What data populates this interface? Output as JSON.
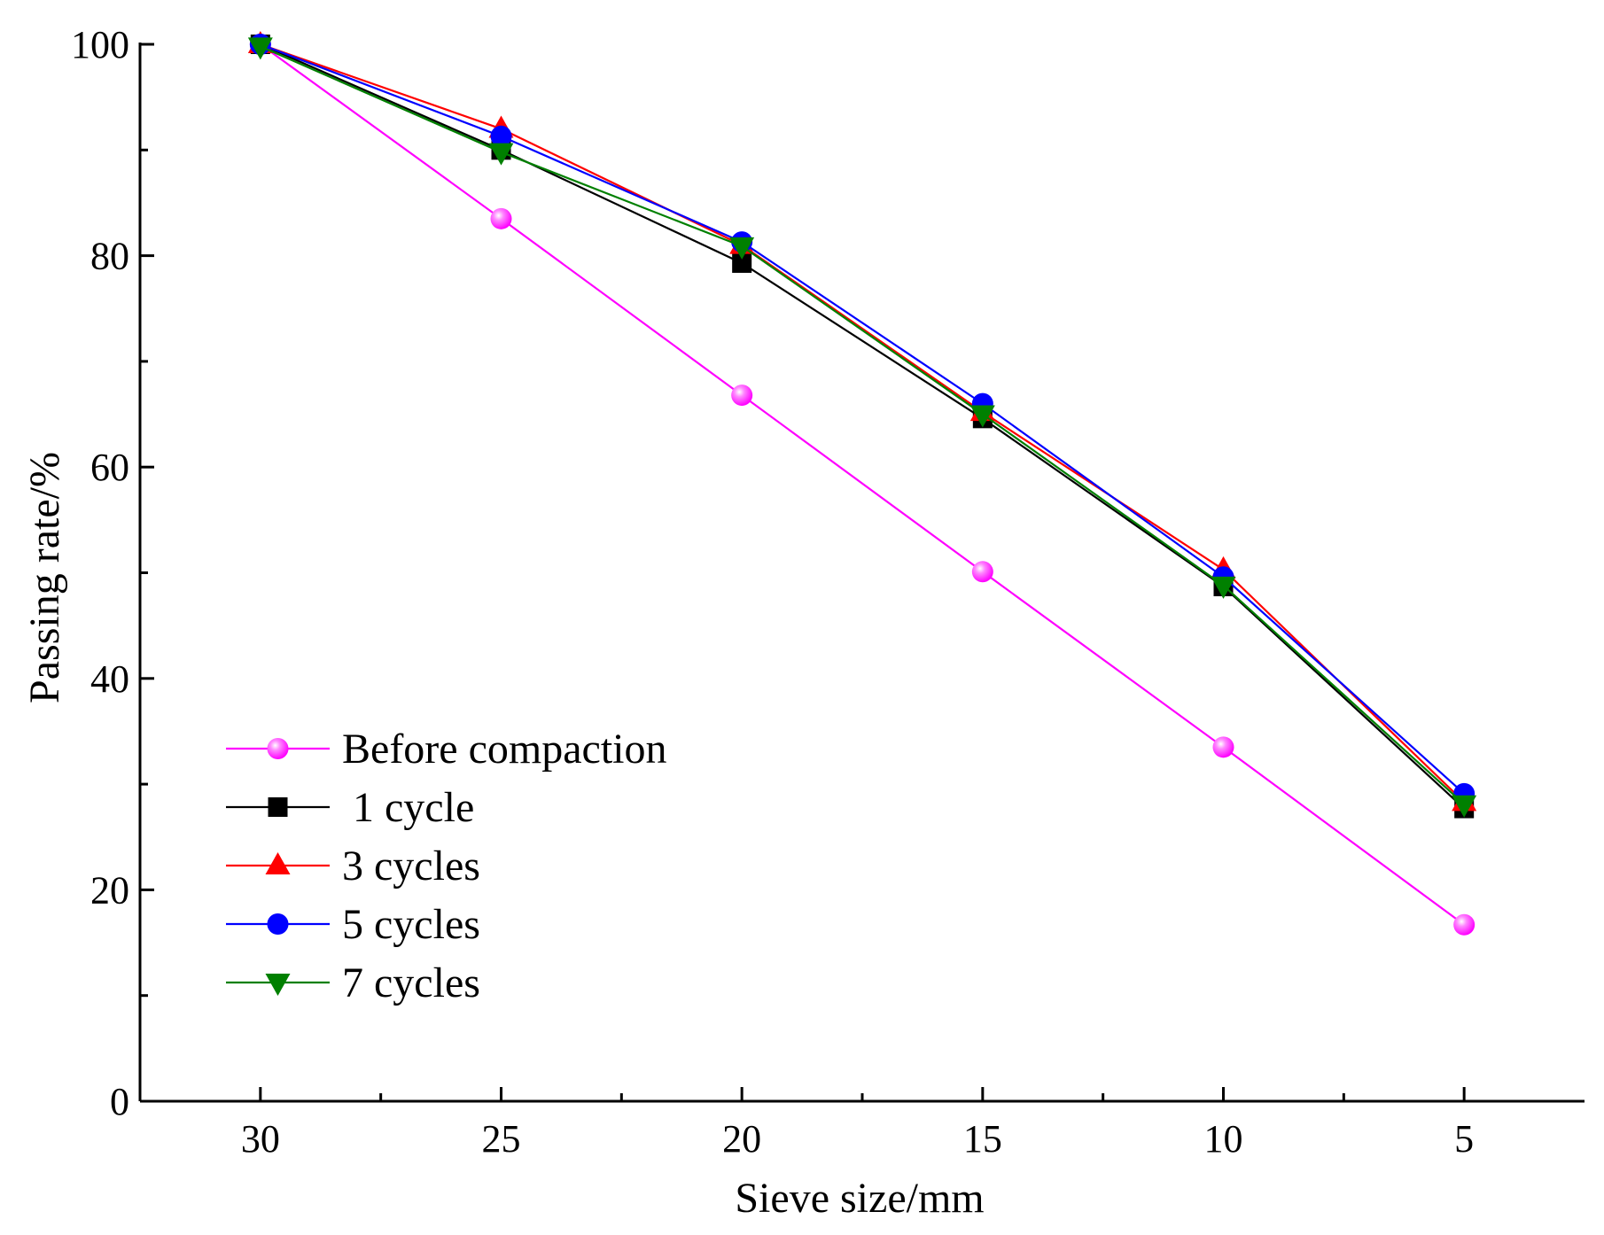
{
  "chart_data": {
    "type": "line",
    "title": "",
    "xlabel": "Sieve size/mm",
    "ylabel": "Passing rate/%",
    "x": [
      30,
      25,
      20,
      15,
      10,
      5
    ],
    "x_tick_labels": [
      "30",
      "25",
      "20",
      "15",
      "10",
      "5"
    ],
    "y_tick_labels": [
      "0",
      "20",
      "40",
      "60",
      "80",
      "100"
    ],
    "y_ticks": [
      0,
      20,
      40,
      60,
      80,
      100
    ],
    "ylim": [
      0,
      100
    ],
    "xlim": [
      32.5,
      2.5
    ],
    "x_reversed": true,
    "grid": false,
    "legend_position": "lower-left",
    "series": [
      {
        "name": "Before compaction",
        "color": "#ff00ff",
        "marker": "sphere",
        "values": [
          100,
          83.5,
          66.8,
          50.1,
          33.5,
          16.7
        ]
      },
      {
        "name": " 1 cycle",
        "color": "#000000",
        "marker": "square",
        "values": [
          100,
          90.0,
          79.3,
          64.6,
          48.7,
          27.7
        ]
      },
      {
        "name": "3 cycles",
        "color": "#ff0000",
        "marker": "triangle-up",
        "values": [
          100,
          92.0,
          81.0,
          65.2,
          50.3,
          28.3
        ]
      },
      {
        "name": "5 cycles",
        "color": "#0000ff",
        "marker": "circle",
        "values": [
          100,
          91.3,
          81.3,
          66.0,
          49.6,
          29.1
        ]
      },
      {
        "name": "7 cycles",
        "color": "#008000",
        "marker": "triangle-down",
        "values": [
          99.8,
          89.8,
          80.9,
          65.0,
          48.8,
          28.1
        ]
      }
    ]
  }
}
